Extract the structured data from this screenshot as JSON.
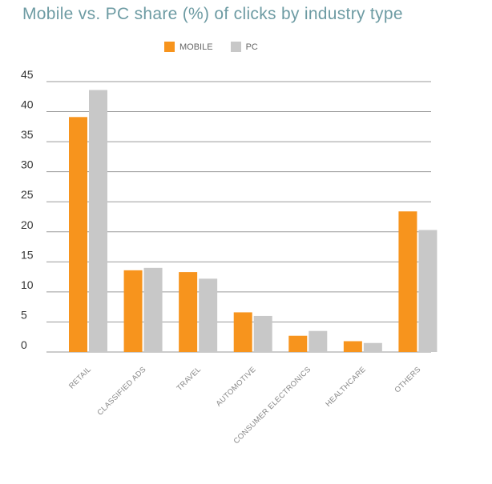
{
  "chart_data": {
    "type": "bar",
    "title": "Mobile vs. PC share (%) of clicks by industry type",
    "categories": [
      "RETAIL",
      "CLASSIFIED ADS",
      "TRAVEL",
      "AUTOMOTIVE",
      "CONSUMER ELECTRONICS",
      "HEALTHCARE",
      "OTHERS"
    ],
    "series": [
      {
        "name": "MOBILE",
        "color": "#f7941d",
        "values": [
          39.1,
          13.6,
          13.3,
          6.6,
          2.7,
          1.8,
          23.4
        ]
      },
      {
        "name": "PC",
        "color": "#c8c8c8",
        "values": [
          43.6,
          14.0,
          12.2,
          6.0,
          3.5,
          1.5,
          20.3
        ]
      }
    ],
    "xlabel": "",
    "ylabel": "",
    "ylim": [
      0,
      45
    ],
    "yticks": [
      0,
      5,
      10,
      15,
      20,
      25,
      30,
      35,
      40,
      45
    ],
    "grid": true,
    "legend_position": "top-center"
  }
}
